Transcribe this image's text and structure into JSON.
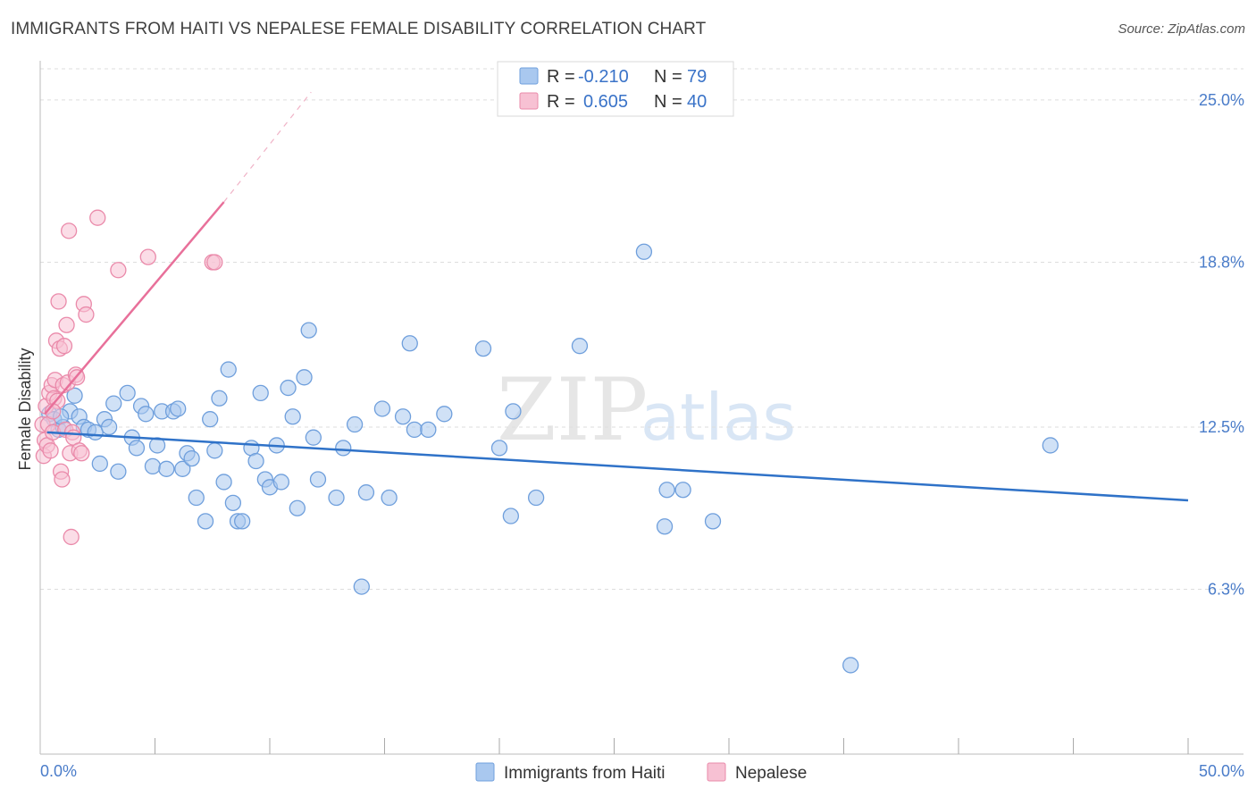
{
  "header": {
    "title": "IMMIGRANTS FROM HAITI VS NEPALESE FEMALE DISABILITY CORRELATION CHART",
    "source": "Source: ZipAtlas.com"
  },
  "watermark": {
    "part1": "ZIP",
    "part2": "atlas"
  },
  "legend": {
    "entries": [
      {
        "r_label": "R =",
        "r_value": "-0.210",
        "n_label": "N =",
        "n_value": "79",
        "color": "#a9c8ef",
        "stroke": "#6f9fdc"
      },
      {
        "r_label": "R =",
        "r_value": "0.605",
        "n_label": "N =",
        "n_value": "40",
        "color": "#f7c1d3",
        "stroke": "#ea8aaa"
      }
    ]
  },
  "chart_data": {
    "type": "scatter",
    "title": "IMMIGRANTS FROM HAITI VS NEPALESE FEMALE DISABILITY CORRELATION CHART",
    "xlabel": "",
    "ylabel": "Female Disability",
    "xlim": [
      0,
      50
    ],
    "ylim": [
      0,
      26.5
    ],
    "x_tick_labels": [
      "0.0%",
      "50.0%"
    ],
    "y_ticks": [
      {
        "value": 6.3,
        "label": "6.3%"
      },
      {
        "value": 12.5,
        "label": "12.5%"
      },
      {
        "value": 18.8,
        "label": "18.8%"
      },
      {
        "value": 25.0,
        "label": "25.0%"
      }
    ],
    "series": [
      {
        "name": "Immigrants from Haiti",
        "color": "#a9c8ef",
        "stroke": "#6f9fdc",
        "line_color": "#2f72c8",
        "trend": {
          "x1": 0.3,
          "y1": 12.3,
          "x2": 50,
          "y2": 9.7
        },
        "points": [
          [
            0.4,
            13.0
          ],
          [
            0.6,
            12.8
          ],
          [
            0.8,
            12.4
          ],
          [
            1.0,
            12.5
          ],
          [
            1.3,
            13.1
          ],
          [
            1.5,
            13.7
          ],
          [
            1.7,
            12.9
          ],
          [
            1.9,
            12.5
          ],
          [
            2.1,
            12.4
          ],
          [
            2.4,
            12.3
          ],
          [
            2.6,
            11.1
          ],
          [
            2.8,
            12.8
          ],
          [
            3.0,
            12.5
          ],
          [
            3.2,
            13.4
          ],
          [
            3.4,
            10.8
          ],
          [
            3.8,
            13.8
          ],
          [
            4.0,
            12.1
          ],
          [
            4.2,
            11.7
          ],
          [
            4.4,
            13.3
          ],
          [
            4.6,
            13.0
          ],
          [
            4.9,
            11.0
          ],
          [
            5.1,
            11.8
          ],
          [
            5.3,
            13.1
          ],
          [
            5.5,
            10.9
          ],
          [
            5.8,
            13.1
          ],
          [
            6.0,
            13.2
          ],
          [
            6.2,
            10.9
          ],
          [
            6.4,
            11.5
          ],
          [
            6.6,
            11.3
          ],
          [
            6.8,
            9.8
          ],
          [
            7.2,
            8.9
          ],
          [
            7.4,
            12.8
          ],
          [
            7.6,
            11.6
          ],
          [
            7.8,
            13.6
          ],
          [
            8.0,
            10.4
          ],
          [
            8.2,
            14.7
          ],
          [
            8.4,
            9.6
          ],
          [
            8.6,
            8.9
          ],
          [
            8.8,
            8.9
          ],
          [
            9.2,
            11.7
          ],
          [
            9.4,
            11.2
          ],
          [
            9.6,
            13.8
          ],
          [
            9.8,
            10.5
          ],
          [
            10.0,
            10.2
          ],
          [
            10.3,
            11.8
          ],
          [
            10.5,
            10.4
          ],
          [
            10.8,
            14.0
          ],
          [
            11.0,
            12.9
          ],
          [
            11.2,
            9.4
          ],
          [
            11.5,
            14.4
          ],
          [
            11.7,
            16.2
          ],
          [
            11.9,
            12.1
          ],
          [
            12.1,
            10.5
          ],
          [
            12.9,
            9.8
          ],
          [
            13.2,
            11.7
          ],
          [
            13.7,
            12.6
          ],
          [
            14.0,
            6.4
          ],
          [
            14.2,
            10.0
          ],
          [
            14.9,
            13.2
          ],
          [
            15.2,
            9.8
          ],
          [
            15.8,
            12.9
          ],
          [
            16.1,
            15.7
          ],
          [
            16.3,
            12.4
          ],
          [
            16.9,
            12.4
          ],
          [
            17.6,
            13.0
          ],
          [
            19.3,
            15.5
          ],
          [
            20.0,
            11.7
          ],
          [
            20.5,
            9.1
          ],
          [
            20.6,
            13.1
          ],
          [
            21.6,
            9.8
          ],
          [
            23.5,
            15.6
          ],
          [
            26.3,
            19.2
          ],
          [
            27.2,
            8.7
          ],
          [
            27.3,
            10.1
          ],
          [
            28.0,
            10.1
          ],
          [
            29.3,
            8.9
          ],
          [
            35.3,
            3.4
          ],
          [
            44.0,
            11.8
          ],
          [
            0.9,
            12.9
          ]
        ]
      },
      {
        "name": "Nepalese",
        "color": "#f7c1d3",
        "stroke": "#ea8aaa",
        "line_color": "#e8709a",
        "trend": {
          "x1": 0.2,
          "y1": 13.0,
          "x2": 8.0,
          "y2": 21.1
        },
        "trend_ext": {
          "x1": 8.0,
          "y1": 21.1,
          "x2": 11.8,
          "y2": 25.3
        },
        "points": [
          [
            0.1,
            12.6
          ],
          [
            0.15,
            11.4
          ],
          [
            0.2,
            12.0
          ],
          [
            0.25,
            13.3
          ],
          [
            0.3,
            11.8
          ],
          [
            0.35,
            12.6
          ],
          [
            0.4,
            13.8
          ],
          [
            0.45,
            11.6
          ],
          [
            0.5,
            14.1
          ],
          [
            0.55,
            12.3
          ],
          [
            0.6,
            13.6
          ],
          [
            0.65,
            14.3
          ],
          [
            0.7,
            15.8
          ],
          [
            0.75,
            13.5
          ],
          [
            0.8,
            17.3
          ],
          [
            0.85,
            15.5
          ],
          [
            0.9,
            10.8
          ],
          [
            0.95,
            10.5
          ],
          [
            1.0,
            14.1
          ],
          [
            1.05,
            15.6
          ],
          [
            1.1,
            12.4
          ],
          [
            1.15,
            16.4
          ],
          [
            1.2,
            14.2
          ],
          [
            1.25,
            20.0
          ],
          [
            1.3,
            11.5
          ],
          [
            1.35,
            8.3
          ],
          [
            1.4,
            12.3
          ],
          [
            1.45,
            12.1
          ],
          [
            1.55,
            14.5
          ],
          [
            1.6,
            14.4
          ],
          [
            1.7,
            11.6
          ],
          [
            1.8,
            11.5
          ],
          [
            1.9,
            17.2
          ],
          [
            2.0,
            16.8
          ],
          [
            2.5,
            20.5
          ],
          [
            3.4,
            18.5
          ],
          [
            4.7,
            19.0
          ],
          [
            7.5,
            18.8
          ],
          [
            7.6,
            18.8
          ],
          [
            0.55,
            13.1
          ]
        ]
      }
    ]
  }
}
